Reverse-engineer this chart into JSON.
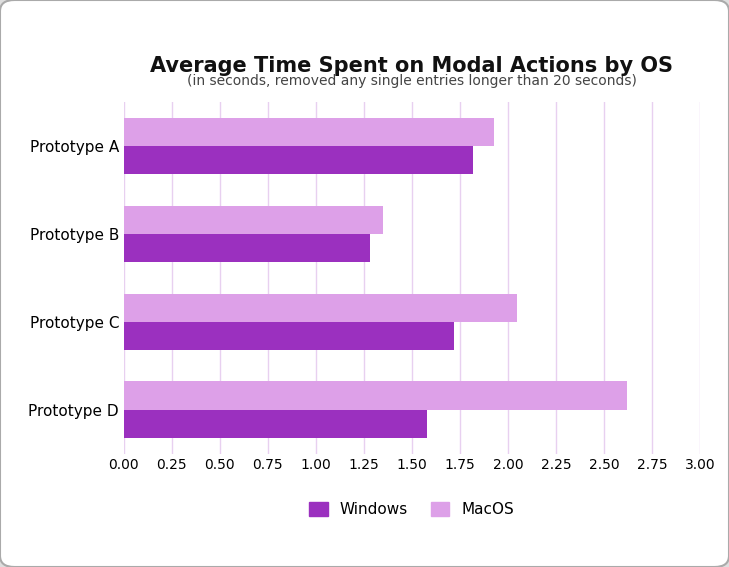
{
  "title": "Average Time Spent on Modal Actions by OS",
  "subtitle": "(in seconds, removed any single entries longer than 20 seconds)",
  "categories": [
    "Prototype A",
    "Prototype B",
    "Prototype C",
    "Prototype D"
  ],
  "windows_values": [
    1.82,
    1.28,
    1.72,
    1.58
  ],
  "macos_values": [
    1.93,
    1.35,
    2.05,
    2.62
  ],
  "windows_color": "#9B30BF",
  "macos_color": "#DDA0E8",
  "background_color": "#FFFFFF",
  "xlim": [
    0,
    3.0
  ],
  "xticks": [
    0.0,
    0.25,
    0.5,
    0.75,
    1.0,
    1.25,
    1.5,
    1.75,
    2.0,
    2.25,
    2.5,
    2.75,
    3.0
  ],
  "title_fontsize": 15,
  "subtitle_fontsize": 10,
  "tick_fontsize": 10,
  "label_fontsize": 11,
  "legend_fontsize": 11,
  "bar_height": 0.32,
  "grid_color": "#E8D0F0",
  "outer_bg": "#DEDEDE"
}
